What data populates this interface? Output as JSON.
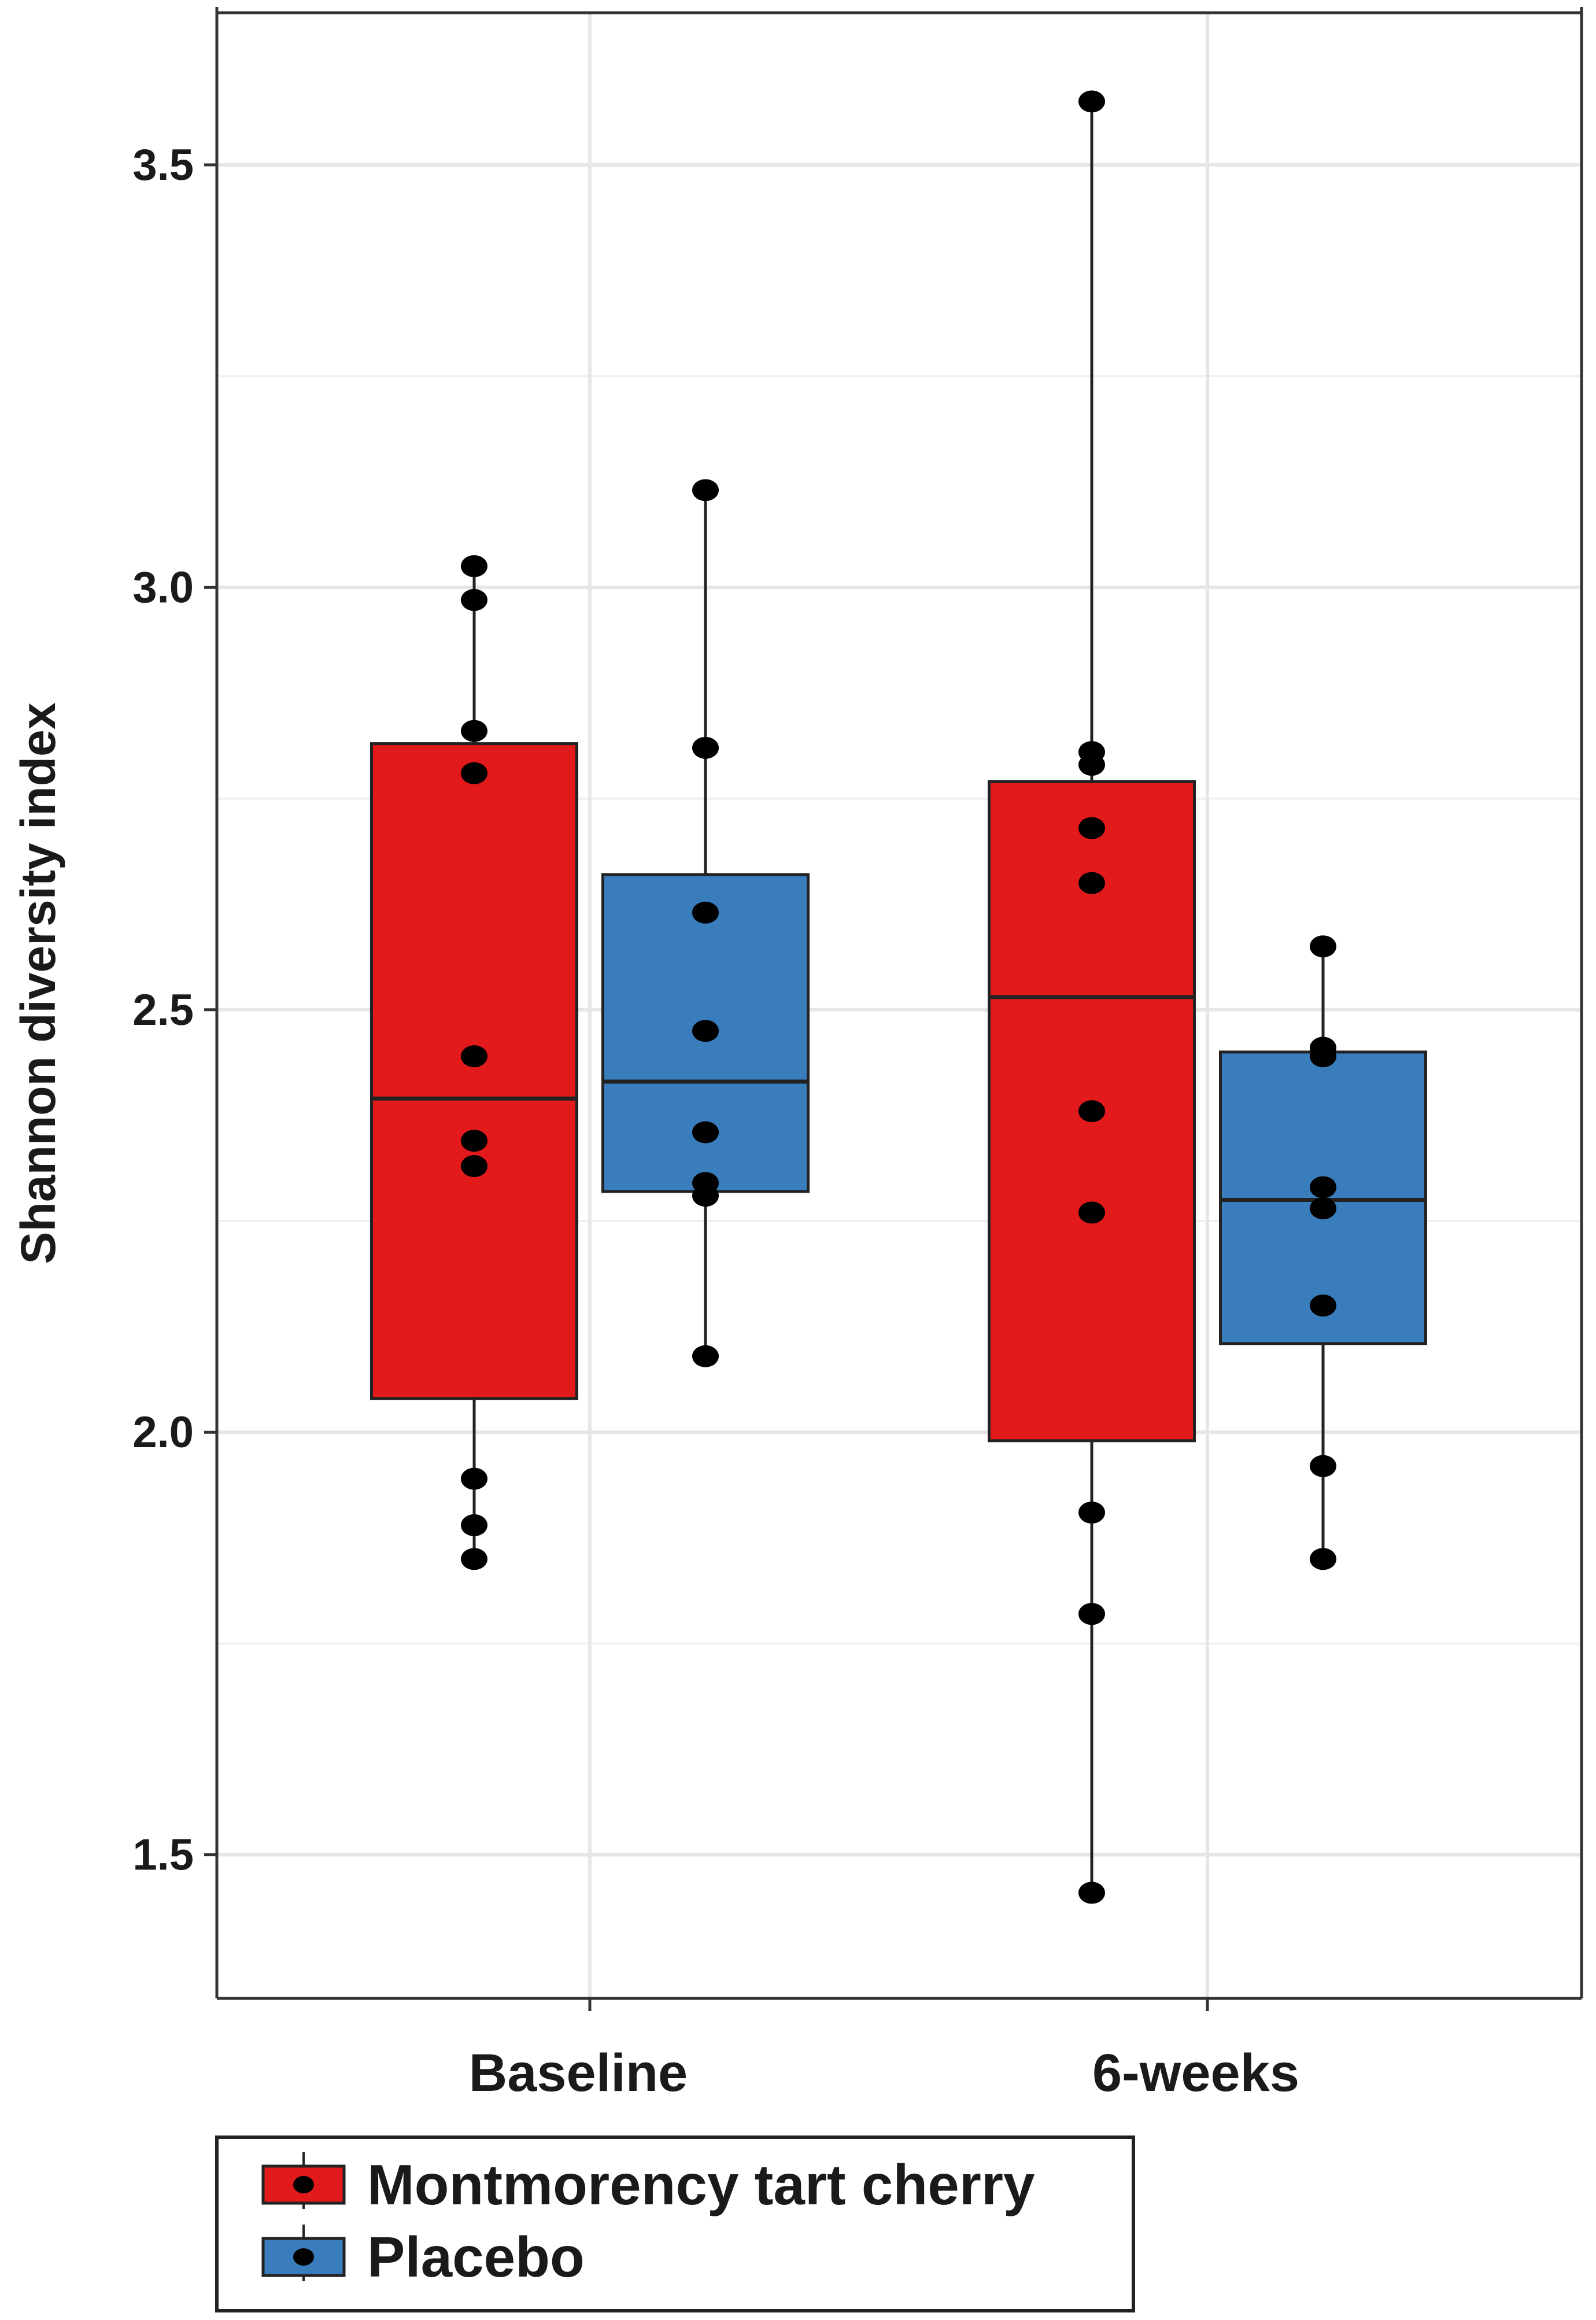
{
  "chart_data": {
    "type": "boxplot",
    "ylabel": "Shannon diversity index",
    "xlabel": "",
    "ylim": [
      1.33,
      3.68
    ],
    "yticks": [
      1.5,
      2.0,
      2.5,
      3.0,
      3.5
    ],
    "ytick_labels": [
      "1.5",
      "2.0",
      "2.5",
      "3.0",
      "3.5"
    ],
    "categories": [
      "Baseline",
      "6-weeks"
    ],
    "grid": true,
    "legend_position": "bottom-left",
    "series": [
      {
        "name": "Montmorency tart cherry",
        "color": "#e31a1c",
        "boxes": [
          {
            "category": "Baseline",
            "q1": 2.04,
            "median": 2.395,
            "q3": 2.815,
            "whisker_low": 1.85,
            "whisker_high": 3.025,
            "points": [
              3.025,
              2.985,
              2.83,
              2.78,
              2.445,
              2.345,
              2.315,
              1.945,
              1.89,
              1.85
            ]
          },
          {
            "category": "6-weeks",
            "q1": 1.99,
            "median": 2.515,
            "q3": 2.77,
            "whisker_low": 1.455,
            "whisker_high": 3.575,
            "points": [
              3.575,
              2.805,
              2.79,
              2.715,
              2.65,
              2.38,
              2.26,
              1.905,
              1.785,
              1.455
            ]
          }
        ]
      },
      {
        "name": "Placebo",
        "color": "#3a7dbd",
        "boxes": [
          {
            "category": "Baseline",
            "q1": 2.285,
            "median": 2.415,
            "q3": 2.66,
            "whisker_low": 2.09,
            "whisker_high": 3.115,
            "points": [
              3.115,
              2.81,
              2.615,
              2.475,
              2.355,
              2.295,
              2.28,
              2.09
            ]
          },
          {
            "category": "6-weeks",
            "q1": 2.105,
            "median": 2.275,
            "q3": 2.45,
            "whisker_low": 1.85,
            "whisker_high": 2.575,
            "points": [
              2.575,
              2.455,
              2.445,
              2.29,
              2.265,
              2.15,
              1.96,
              1.85
            ]
          }
        ]
      }
    ],
    "legend": [
      "Montmorency tart cherry",
      "Placebo"
    ]
  }
}
